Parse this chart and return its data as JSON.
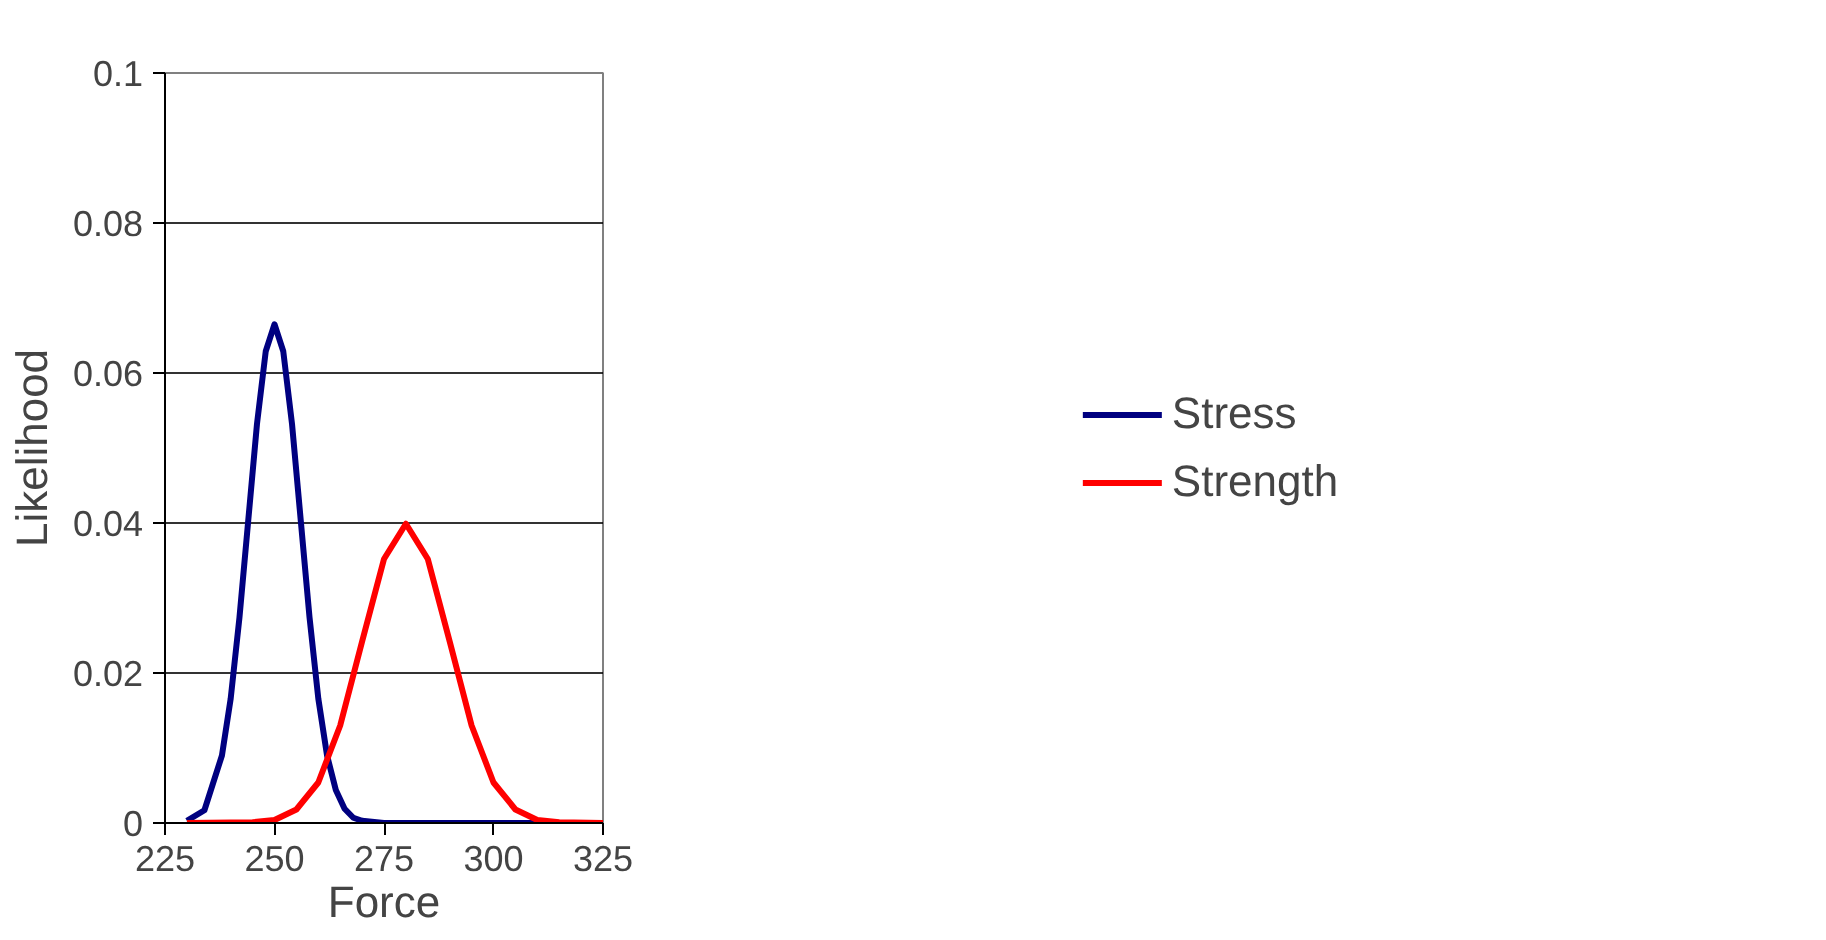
{
  "chart_data": {
    "type": "line",
    "xlabel": "Force",
    "ylabel": "Likelihood",
    "xlim": [
      225,
      325
    ],
    "xticks": [
      225,
      250,
      275,
      300,
      325
    ],
    "ylim": [
      0,
      0.1
    ],
    "yticks": [
      0,
      0.02,
      0.04,
      0.06,
      0.08,
      0.1
    ],
    "grid": "y",
    "legend": "right",
    "marker": "none",
    "line_style": "solid",
    "series": [
      {
        "name": "Stress",
        "color": "#000080",
        "x": [
          230,
          234,
          238,
          240,
          242,
          244,
          246,
          248,
          250,
          252,
          254,
          256,
          258,
          260,
          262,
          264,
          266,
          268,
          270,
          275,
          300,
          325
        ],
        "values": [
          0.0003,
          0.0017,
          0.009,
          0.0166,
          0.0274,
          0.0403,
          0.0532,
          0.0629,
          0.0665,
          0.0629,
          0.0532,
          0.0403,
          0.0274,
          0.0166,
          0.009,
          0.0044,
          0.0019,
          0.0007,
          0.0003,
          0,
          0,
          0
        ]
      },
      {
        "name": "Strength",
        "color": "#ff0000",
        "x": [
          230,
          245,
          250,
          255,
          260,
          265,
          270,
          275,
          280,
          285,
          290,
          295,
          300,
          305,
          310,
          315,
          325
        ],
        "values": [
          0,
          0.0001,
          0.0004,
          0.0018,
          0.0054,
          0.013,
          0.0242,
          0.0352,
          0.0399,
          0.0352,
          0.0242,
          0.013,
          0.0054,
          0.0018,
          0.0004,
          0.0001,
          0
        ]
      }
    ]
  }
}
